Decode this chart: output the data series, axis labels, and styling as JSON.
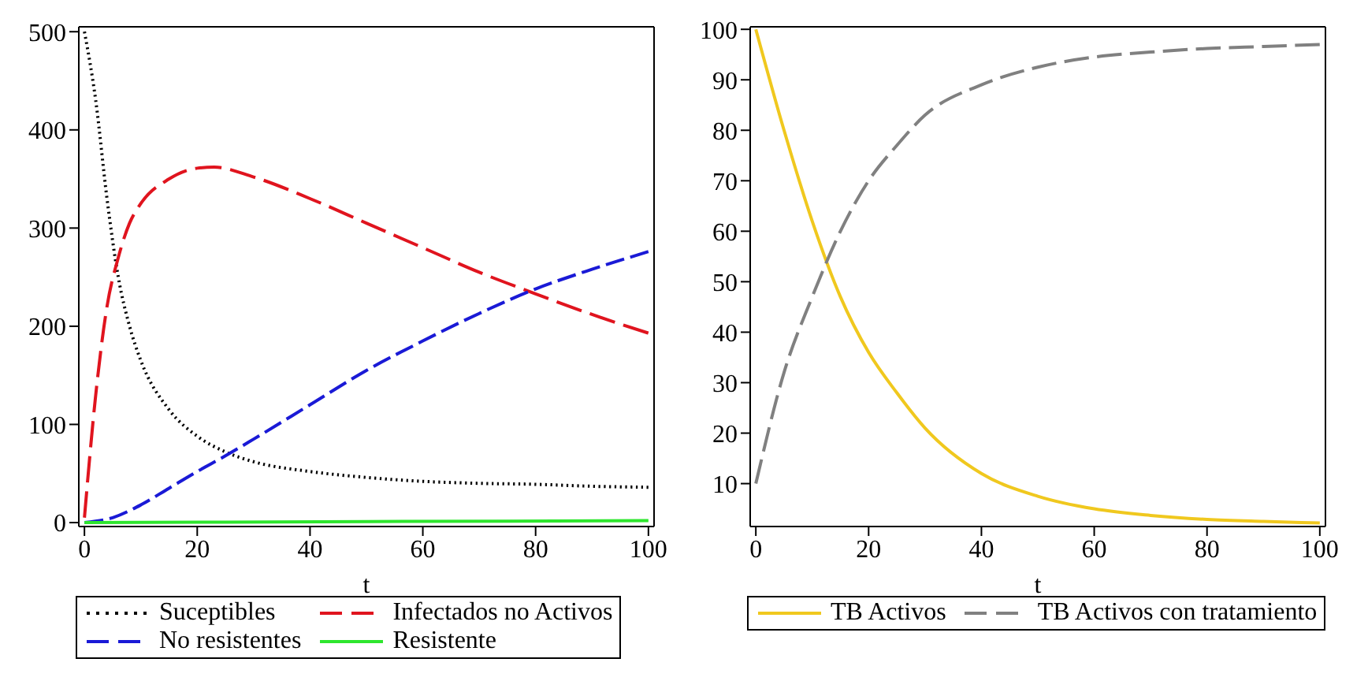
{
  "chart_data": [
    {
      "type": "line",
      "xlabel": "t",
      "xlim": [
        -1,
        101
      ],
      "xticks": [
        0,
        20,
        40,
        60,
        80,
        100
      ],
      "ylim": [
        -4,
        505
      ],
      "yticks": [
        0,
        100,
        200,
        300,
        400,
        500
      ],
      "legend": "bottom",
      "grid": false,
      "series": [
        {
          "name": "Suceptibles",
          "color": "#000000",
          "line_style": "dotted",
          "x": [
            0,
            2,
            4,
            6,
            8,
            10,
            15,
            20,
            25,
            30,
            40,
            50,
            60,
            70,
            80,
            90,
            100
          ],
          "values": [
            500,
            430,
            330,
            250,
            200,
            165,
            115,
            88,
            72,
            62,
            52,
            46,
            42,
            40,
            39,
            37,
            36
          ]
        },
        {
          "name": "Infectados no Activos",
          "color": "#e0141e",
          "line_style": "dashed",
          "x": [
            0,
            2,
            4,
            6,
            8,
            10,
            15,
            20,
            23,
            30,
            40,
            50,
            60,
            70,
            80,
            90,
            100
          ],
          "values": [
            5,
            130,
            220,
            270,
            305,
            325,
            350,
            361,
            362,
            352,
            330,
            305,
            280,
            255,
            233,
            212,
            193
          ]
        },
        {
          "name": "No resistentes",
          "color": "#1a1ad6",
          "line_style": "dashed",
          "x": [
            0,
            5,
            10,
            15,
            20,
            25,
            30,
            40,
            50,
            60,
            70,
            80,
            90,
            100
          ],
          "values": [
            0,
            5,
            18,
            35,
            52,
            68,
            85,
            120,
            155,
            185,
            213,
            238,
            258,
            276
          ]
        },
        {
          "name": "Resistente",
          "color": "#2ee62e",
          "line_style": "solid",
          "x": [
            0,
            50,
            100
          ],
          "values": [
            0,
            1,
            2
          ]
        }
      ]
    },
    {
      "type": "line",
      "xlabel": "t",
      "xlim": [
        -1,
        101
      ],
      "xticks": [
        0,
        20,
        40,
        60,
        80,
        100
      ],
      "ylim": [
        1.5,
        100.5
      ],
      "yticks": [
        10,
        20,
        30,
        40,
        50,
        60,
        70,
        80,
        90,
        100
      ],
      "legend": "bottom",
      "grid": false,
      "series": [
        {
          "name": "TB Activos",
          "color": "#f0c81e",
          "line_style": "solid",
          "x": [
            0,
            5,
            10,
            15,
            20,
            25,
            30,
            40,
            50,
            60,
            70,
            80,
            90,
            100
          ],
          "values": [
            100,
            80,
            62,
            47,
            36,
            28,
            21,
            12,
            7.5,
            5,
            3.7,
            2.9,
            2.5,
            2.2
          ]
        },
        {
          "name": "TB Activos con tratamiento",
          "color": "#808080",
          "line_style": "dashed",
          "x": [
            0,
            5,
            10,
            15,
            20,
            25,
            30,
            40,
            50,
            60,
            70,
            80,
            90,
            100
          ],
          "values": [
            10,
            32,
            47,
            60,
            70,
            77,
            83,
            89,
            92.5,
            94.5,
            95.5,
            96.2,
            96.6,
            97
          ]
        }
      ]
    }
  ]
}
